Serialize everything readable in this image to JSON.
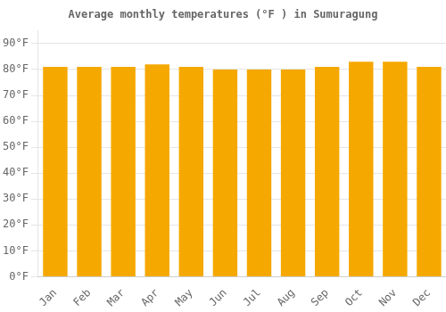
{
  "chart_data": {
    "type": "bar",
    "title": "Average monthly temperatures (°F ) in Sumuragung",
    "categories": [
      "Jan",
      "Feb",
      "Mar",
      "Apr",
      "May",
      "Jun",
      "Jul",
      "Aug",
      "Sep",
      "Oct",
      "Nov",
      "Dec"
    ],
    "values": [
      81,
      81,
      81,
      82,
      81,
      80,
      80,
      80,
      81,
      83,
      83,
      81
    ],
    "color": "#F5A800",
    "ylim": [
      0,
      95
    ],
    "yticks": [
      {
        "value": 0,
        "label": "0°F"
      },
      {
        "value": 10,
        "label": "10°F"
      },
      {
        "value": 20,
        "label": "20°F"
      },
      {
        "value": 30,
        "label": "30°F"
      },
      {
        "value": 40,
        "label": "40°F"
      },
      {
        "value": 50,
        "label": "50°F"
      },
      {
        "value": 60,
        "label": "60°F"
      },
      {
        "value": 70,
        "label": "70°F"
      },
      {
        "value": 80,
        "label": "80°F"
      },
      {
        "value": 90,
        "label": "90°F"
      }
    ],
    "grid": true
  }
}
